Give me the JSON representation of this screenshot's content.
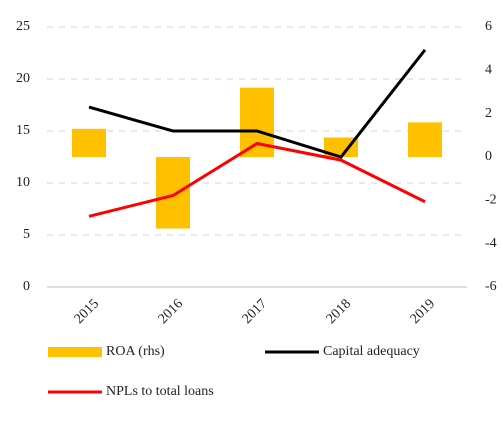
{
  "chart_data": {
    "type": "combo",
    "categories": [
      "2015",
      "2016",
      "2017",
      "2018",
      "2019"
    ],
    "series": [
      {
        "name": "ROA (rhs)",
        "type": "bar",
        "axis": "y2",
        "color": "#ffc000",
        "values": [
          1.3,
          -3.3,
          3.2,
          0.9,
          1.6
        ]
      },
      {
        "name": "Capital adequacy",
        "type": "line",
        "color": "#000000",
        "values": [
          17.3,
          15.0,
          15.0,
          12.5,
          22.8
        ]
      },
      {
        "name": "NPLs to total loans",
        "type": "line",
        "color": "#ff0000",
        "values": [
          6.8,
          8.8,
          13.8,
          12.2,
          8.2
        ]
      }
    ],
    "ylim": [
      0,
      25
    ],
    "yticks": [
      0,
      5,
      10,
      15,
      20,
      25
    ],
    "y2lim": [
      -6,
      6
    ],
    "y2ticks": [
      -6,
      -4,
      -2,
      0,
      2,
      4,
      6
    ],
    "grid": true
  }
}
